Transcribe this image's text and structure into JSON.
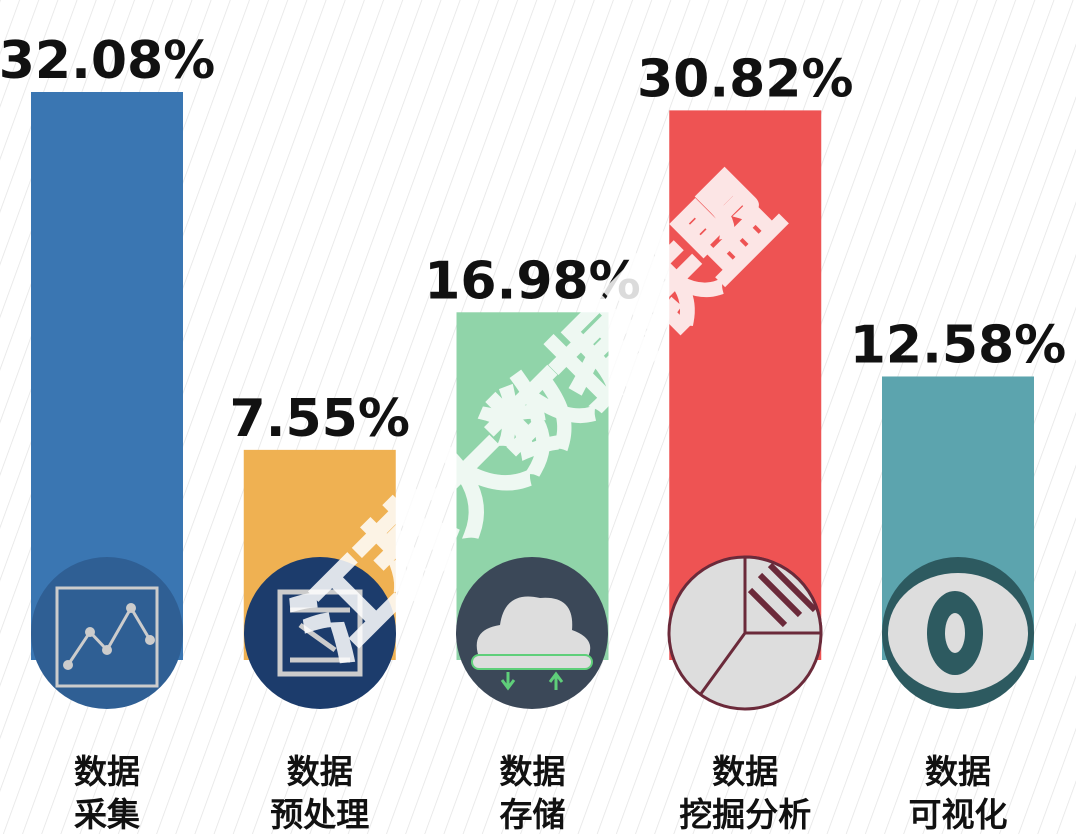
{
  "chart_data": {
    "type": "bar",
    "categories": [
      "数据\n采集",
      "数据\n预处理",
      "数据\n存储",
      "数据\n挖掘分析",
      "数据\n可视化"
    ],
    "values": [
      32.08,
      7.55,
      16.98,
      30.82,
      12.58
    ],
    "value_labels": [
      "32.08%",
      "7.55%",
      "16.98%",
      "30.82%",
      "12.58%"
    ],
    "colors": [
      "#3a76b2",
      "#efb152",
      "#90d4a9",
      "#ee5353",
      "#5ca4ae"
    ],
    "watermark": "江苏大数据联盟"
  }
}
